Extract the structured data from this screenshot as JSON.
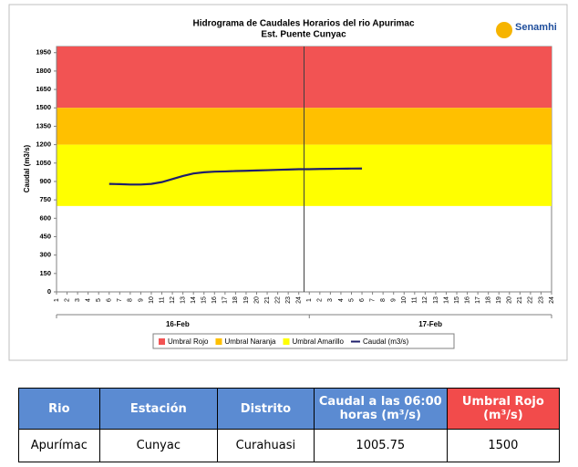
{
  "chart_data": {
    "type": "line",
    "title": "Hidrograma de Caudales Horarios del rio Apurimac",
    "subtitle": "Est. Puente Cunyac",
    "logo": "Senamhi",
    "y_label": "Caudal  (m3/s)",
    "categories": [
      "1",
      "2",
      "3",
      "4",
      "5",
      "6",
      "7",
      "8",
      "9",
      "10",
      "11",
      "12",
      "13",
      "14",
      "15",
      "16",
      "17",
      "18",
      "19",
      "20",
      "21",
      "22",
      "23",
      "24",
      "1",
      "2",
      "3",
      "4",
      "5",
      "6",
      "7",
      "8",
      "9",
      "10",
      "11",
      "12",
      "13",
      "14",
      "15",
      "16",
      "17",
      "18",
      "19",
      "20",
      "21",
      "22",
      "23",
      "24"
    ],
    "date_labels": [
      "16-Feb",
      "17-Feb"
    ],
    "series": [
      {
        "name": "Caudal (m3/s)",
        "color": "#1f1f6b",
        "values": [
          null,
          null,
          null,
          null,
          null,
          880,
          878,
          875,
          875,
          880,
          895,
          920,
          945,
          965,
          975,
          980,
          982,
          985,
          987,
          990,
          992,
          995,
          997,
          1000,
          1000,
          1002,
          1003,
          1004,
          1005,
          1005.75,
          null,
          null,
          null,
          null,
          null,
          null,
          null,
          null,
          null,
          null,
          null,
          null,
          null,
          null,
          null,
          null,
          null,
          null
        ]
      }
    ],
    "bands": [
      {
        "name": "Umbral Rojo",
        "color": "#f25353",
        "from": 1500,
        "to": 2000
      },
      {
        "name": "Umbral Naranja",
        "color": "#ffc000",
        "from": 1200,
        "to": 1500
      },
      {
        "name": "Umbral Amarillo",
        "color": "#ffff00",
        "from": 700,
        "to": 1200
      }
    ],
    "ylim": [
      0,
      2000
    ],
    "yticks": [
      0,
      150,
      300,
      450,
      600,
      750,
      900,
      1050,
      1200,
      1350,
      1500,
      1650,
      1800,
      1950
    ],
    "grid": false
  },
  "table": {
    "headers": [
      "Rio",
      "Estación",
      "Distrito",
      "Caudal a las 06:00 horas (m³/s)",
      "Umbral Rojo (m³/s)"
    ],
    "rows": [
      [
        "Apurímac",
        "Cunyac",
        "Curahuasi",
        "1005.75",
        "1500"
      ]
    ]
  }
}
